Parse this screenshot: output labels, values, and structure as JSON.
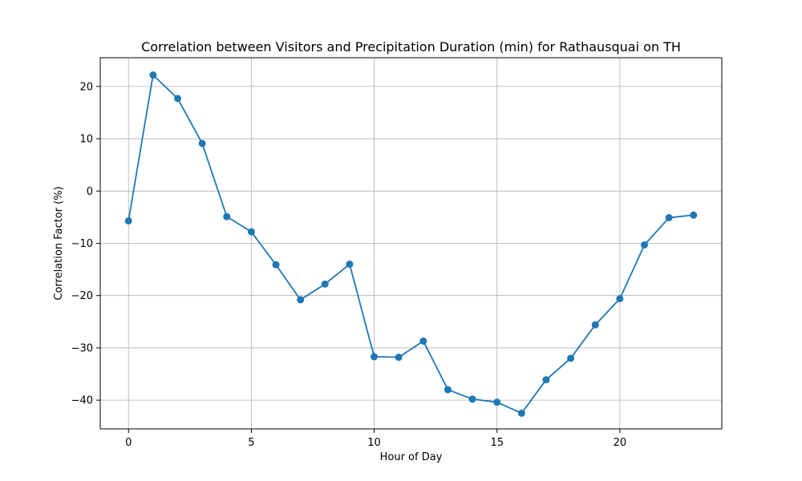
{
  "chart_data": {
    "type": "line",
    "title": "Correlation between Visitors and Precipitation Duration (min) for Rathausquai on TH",
    "xlabel": "Hour of Day",
    "ylabel": "Correlation Factor (%)",
    "xlim": [
      -1.15,
      24.15
    ],
    "ylim": [
      -45.5,
      25.5
    ],
    "xticks": [
      0,
      5,
      10,
      15,
      20
    ],
    "xtick_labels": [
      "0",
      "5",
      "10",
      "15",
      "20"
    ],
    "yticks": [
      20,
      10,
      0,
      -10,
      -20,
      -30,
      -40
    ],
    "ytick_labels": [
      "20",
      "10",
      "0",
      "−10",
      "−20",
      "−30",
      "−40"
    ],
    "grid": true,
    "series": [
      {
        "color": "#1f77b4",
        "x": [
          0,
          1,
          2,
          3,
          4,
          5,
          6,
          7,
          8,
          9,
          10,
          11,
          12,
          13,
          14,
          15,
          16,
          17,
          18,
          19,
          20,
          21,
          22,
          23
        ],
        "y": [
          -5.7,
          22.2,
          17.7,
          9.1,
          -4.9,
          -7.8,
          -14.1,
          -20.8,
          -17.8,
          -14.0,
          -31.7,
          -31.8,
          -28.7,
          -38.0,
          -39.8,
          -40.4,
          -42.5,
          -36.1,
          -32.0,
          -25.6,
          -20.6,
          -10.3,
          -5.1,
          -4.6
        ]
      }
    ]
  }
}
